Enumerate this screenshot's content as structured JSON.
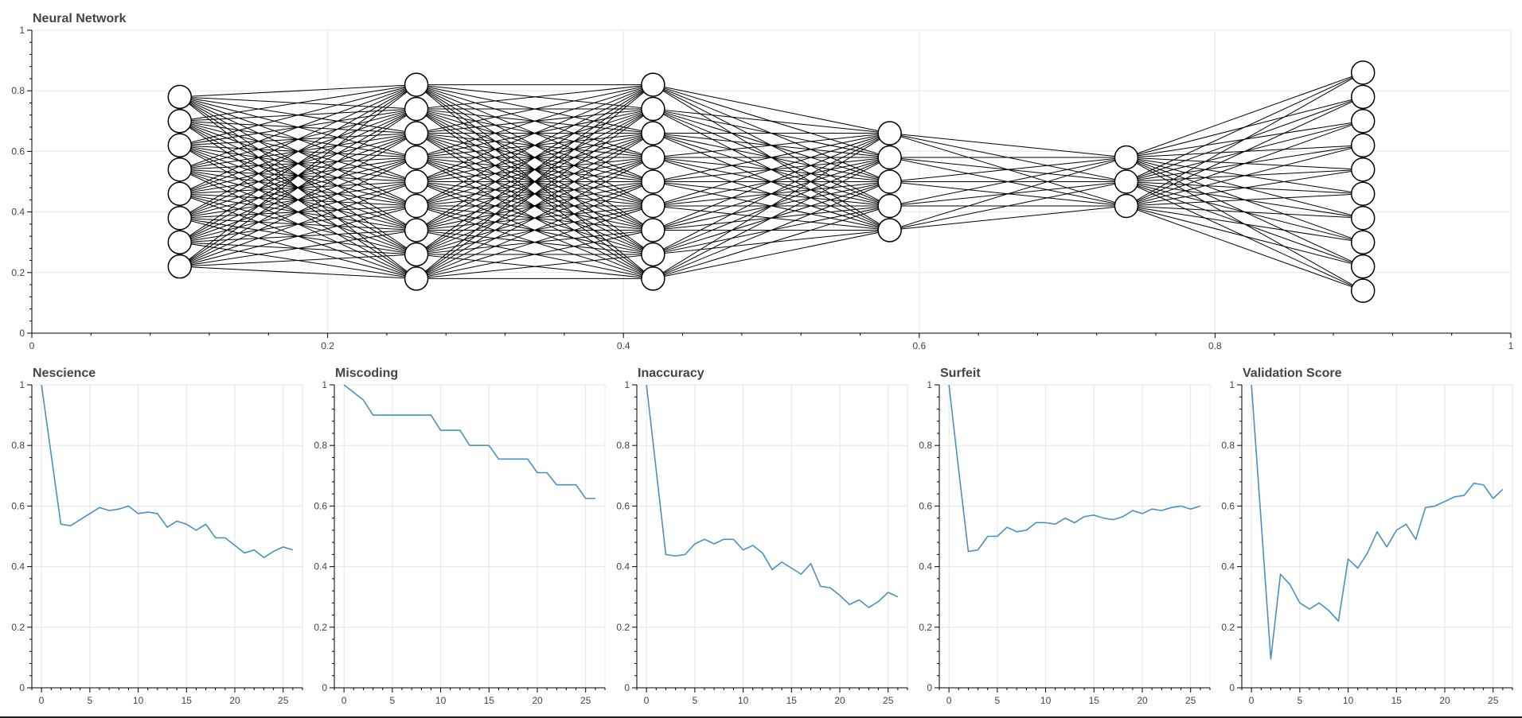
{
  "colors": {
    "line": "#4a90c2",
    "node_fill": "#ffffff",
    "node_stroke": "#000000",
    "edge": "#000000",
    "grid": "#e5e5e5",
    "text": "#444444"
  },
  "chart_data": [
    {
      "type": "network",
      "title": "Neural Network",
      "xlim": [
        0,
        1
      ],
      "ylim": [
        0,
        1
      ],
      "x_ticks": [
        "0",
        "0.2",
        "0.4",
        "0.6",
        "0.8",
        "1"
      ],
      "y_ticks": [
        "0",
        "0.2",
        "0.4",
        "0.6",
        "0.8",
        "1"
      ],
      "grid": true,
      "layers": [
        {
          "x": 0.1,
          "nodes": [
            0.78,
            0.7,
            0.62,
            0.54,
            0.46,
            0.38,
            0.3,
            0.22
          ]
        },
        {
          "x": 0.26,
          "nodes": [
            0.82,
            0.74,
            0.66,
            0.58,
            0.5,
            0.42,
            0.34,
            0.26,
            0.18
          ]
        },
        {
          "x": 0.42,
          "nodes": [
            0.82,
            0.74,
            0.66,
            0.58,
            0.5,
            0.42,
            0.34,
            0.26,
            0.18
          ]
        },
        {
          "x": 0.58,
          "nodes": [
            0.66,
            0.58,
            0.5,
            0.42,
            0.34
          ]
        },
        {
          "x": 0.74,
          "nodes": [
            0.58,
            0.5,
            0.42
          ]
        },
        {
          "x": 0.9,
          "nodes": [
            0.86,
            0.78,
            0.7,
            0.62,
            0.54,
            0.46,
            0.38,
            0.3,
            0.22,
            0.14
          ]
        }
      ]
    },
    {
      "type": "line",
      "title": "Nescience",
      "xlim": [
        -1,
        27
      ],
      "ylim": [
        0,
        1
      ],
      "x_ticks": [
        "0",
        "5",
        "10",
        "15",
        "20",
        "25"
      ],
      "y_ticks": [
        "0",
        "0.2",
        "0.4",
        "0.6",
        "0.8",
        "1"
      ],
      "grid": true,
      "x": [
        0,
        1,
        2,
        3,
        4,
        5,
        6,
        7,
        8,
        9,
        10,
        11,
        12,
        13,
        14,
        15,
        16,
        17,
        18,
        19,
        20,
        21,
        22,
        23,
        24,
        25,
        26
      ],
      "values": [
        1.0,
        0.77,
        0.54,
        0.535,
        0.555,
        0.575,
        0.595,
        0.585,
        0.59,
        0.6,
        0.575,
        0.58,
        0.575,
        0.53,
        0.55,
        0.54,
        0.52,
        0.54,
        0.495,
        0.495,
        0.47,
        0.445,
        0.455,
        0.43,
        0.45,
        0.465,
        0.455
      ]
    },
    {
      "type": "line",
      "title": "Miscoding",
      "xlim": [
        -1,
        27
      ],
      "ylim": [
        0,
        1
      ],
      "x_ticks": [
        "0",
        "5",
        "10",
        "15",
        "20",
        "25"
      ],
      "y_ticks": [
        "0",
        "0.2",
        "0.4",
        "0.6",
        "0.8",
        "1"
      ],
      "grid": true,
      "x": [
        0,
        1,
        2,
        3,
        4,
        5,
        6,
        7,
        8,
        9,
        10,
        11,
        12,
        13,
        14,
        15,
        16,
        17,
        18,
        19,
        20,
        21,
        22,
        23,
        24,
        25,
        26
      ],
      "values": [
        1.0,
        0.975,
        0.95,
        0.9,
        0.9,
        0.9,
        0.9,
        0.9,
        0.9,
        0.9,
        0.85,
        0.85,
        0.85,
        0.8,
        0.8,
        0.8,
        0.755,
        0.755,
        0.755,
        0.755,
        0.71,
        0.71,
        0.67,
        0.67,
        0.67,
        0.625,
        0.625
      ]
    },
    {
      "type": "line",
      "title": "Inaccuracy",
      "xlim": [
        -1,
        27
      ],
      "ylim": [
        0,
        1
      ],
      "x_ticks": [
        "0",
        "5",
        "10",
        "15",
        "20",
        "25"
      ],
      "y_ticks": [
        "0",
        "0.2",
        "0.4",
        "0.6",
        "0.8",
        "1"
      ],
      "grid": true,
      "x": [
        0,
        1,
        2,
        3,
        4,
        5,
        6,
        7,
        8,
        9,
        10,
        11,
        12,
        13,
        14,
        15,
        16,
        17,
        18,
        19,
        20,
        21,
        22,
        23,
        24,
        25,
        26
      ],
      "values": [
        1.0,
        0.72,
        0.44,
        0.435,
        0.44,
        0.475,
        0.49,
        0.475,
        0.49,
        0.49,
        0.455,
        0.47,
        0.445,
        0.39,
        0.415,
        0.395,
        0.375,
        0.41,
        0.335,
        0.33,
        0.305,
        0.275,
        0.29,
        0.265,
        0.285,
        0.315,
        0.3
      ]
    },
    {
      "type": "line",
      "title": "Surfeit",
      "xlim": [
        -1,
        27
      ],
      "ylim": [
        0,
        1
      ],
      "x_ticks": [
        "0",
        "5",
        "10",
        "15",
        "20",
        "25"
      ],
      "y_ticks": [
        "0",
        "0.2",
        "0.4",
        "0.6",
        "0.8",
        "1"
      ],
      "grid": true,
      "x": [
        0,
        1,
        2,
        3,
        4,
        5,
        6,
        7,
        8,
        9,
        10,
        11,
        12,
        13,
        14,
        15,
        16,
        17,
        18,
        19,
        20,
        21,
        22,
        23,
        24,
        25,
        26
      ],
      "values": [
        1.0,
        0.72,
        0.45,
        0.455,
        0.5,
        0.5,
        0.53,
        0.515,
        0.52,
        0.545,
        0.545,
        0.54,
        0.56,
        0.545,
        0.565,
        0.57,
        0.56,
        0.555,
        0.565,
        0.585,
        0.575,
        0.59,
        0.585,
        0.595,
        0.6,
        0.59,
        0.6
      ]
    },
    {
      "type": "line",
      "title": "Validation Score",
      "xlim": [
        -1,
        27
      ],
      "ylim": [
        0,
        1
      ],
      "x_ticks": [
        "0",
        "5",
        "10",
        "15",
        "20",
        "25"
      ],
      "y_ticks": [
        "0",
        "0.2",
        "0.4",
        "0.6",
        "0.8",
        "1"
      ],
      "grid": true,
      "x": [
        0,
        1,
        2,
        3,
        4,
        5,
        6,
        7,
        8,
        9,
        10,
        11,
        12,
        13,
        14,
        15,
        16,
        17,
        18,
        19,
        20,
        21,
        22,
        23,
        24,
        25,
        26
      ],
      "values": [
        1.0,
        0.55,
        0.095,
        0.375,
        0.34,
        0.28,
        0.26,
        0.28,
        0.255,
        0.22,
        0.425,
        0.395,
        0.445,
        0.515,
        0.465,
        0.52,
        0.54,
        0.49,
        0.595,
        0.6,
        0.615,
        0.63,
        0.635,
        0.675,
        0.67,
        0.625,
        0.655
      ]
    }
  ]
}
